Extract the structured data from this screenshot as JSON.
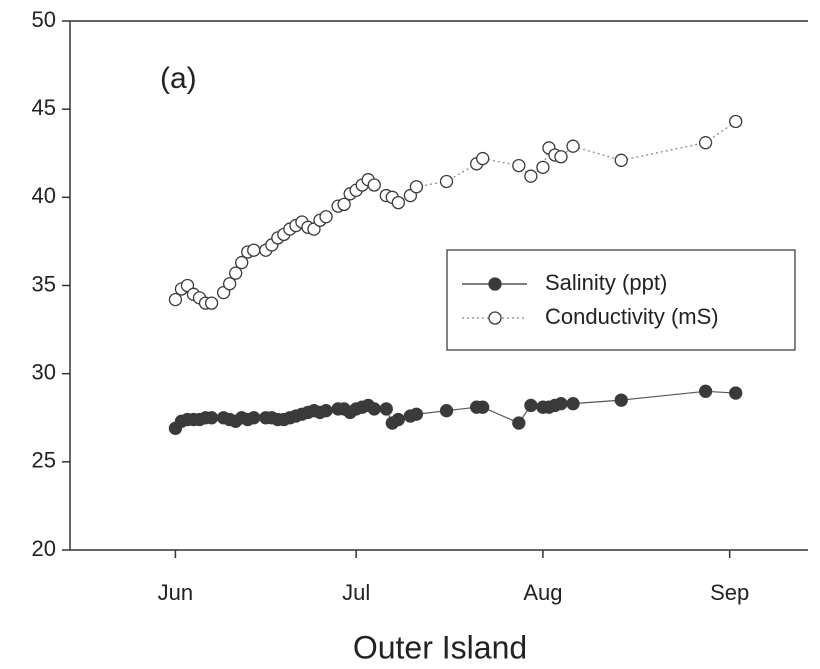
{
  "chart_data": {
    "type": "line",
    "annotation": "(a)",
    "xlabel": "Outer Island",
    "x": [
      0,
      1,
      2,
      3,
      4,
      5,
      6,
      8,
      9,
      10,
      11,
      12,
      13,
      15,
      16,
      17,
      18,
      19,
      20,
      21,
      22,
      23,
      24,
      25,
      27,
      28,
      29,
      30,
      31,
      32,
      33,
      35,
      36,
      37,
      39,
      40,
      45,
      50,
      51,
      57,
      59,
      61,
      62,
      63,
      64,
      66,
      74,
      88,
      93
    ],
    "series": [
      {
        "name": "Salinity (ppt)",
        "color": "#3a3a3a",
        "marker": "filled",
        "line_style": "solid",
        "values": [
          26.9,
          27.3,
          27.4,
          27.4,
          27.4,
          27.5,
          27.5,
          27.5,
          27.4,
          27.3,
          27.5,
          27.4,
          27.5,
          27.5,
          27.5,
          27.4,
          27.4,
          27.5,
          27.6,
          27.7,
          27.8,
          27.9,
          27.8,
          27.9,
          28.0,
          28.0,
          27.8,
          28.0,
          28.1,
          28.2,
          28.0,
          28.0,
          27.2,
          27.4,
          27.6,
          27.7,
          27.9,
          28.1,
          28.1,
          27.2,
          28.2,
          28.1,
          28.1,
          28.2,
          28.3,
          28.3,
          28.5,
          29.0,
          28.9
        ]
      },
      {
        "name": "Conductivity (mS)",
        "color": "#3a3a3a",
        "marker": "open",
        "line_style": "dotted",
        "values": [
          34.2,
          34.8,
          35.0,
          34.5,
          34.3,
          34.0,
          34.0,
          34.6,
          35.1,
          35.7,
          36.3,
          36.9,
          37.0,
          37.0,
          37.3,
          37.7,
          37.9,
          38.2,
          38.4,
          38.6,
          38.3,
          38.2,
          38.7,
          38.9,
          39.5,
          39.6,
          40.2,
          40.4,
          40.7,
          41.0,
          40.7,
          40.1,
          40.0,
          39.7,
          40.1,
          40.6,
          40.9,
          41.9,
          42.2,
          41.8,
          41.2,
          41.7,
          42.8,
          42.4,
          42.3,
          42.9,
          42.1,
          43.1,
          44.3
        ]
      }
    ],
    "xlim": [
      -17.5,
      105
    ],
    "xticks": [
      {
        "value": 0,
        "label": "Jun"
      },
      {
        "value": 30,
        "label": "Jul"
      },
      {
        "value": 61,
        "label": "Aug"
      },
      {
        "value": 92,
        "label": "Sep"
      }
    ],
    "ylim": [
      20,
      50
    ],
    "yticks": [
      20,
      25,
      30,
      35,
      40,
      45,
      50
    ],
    "legend": "right"
  }
}
